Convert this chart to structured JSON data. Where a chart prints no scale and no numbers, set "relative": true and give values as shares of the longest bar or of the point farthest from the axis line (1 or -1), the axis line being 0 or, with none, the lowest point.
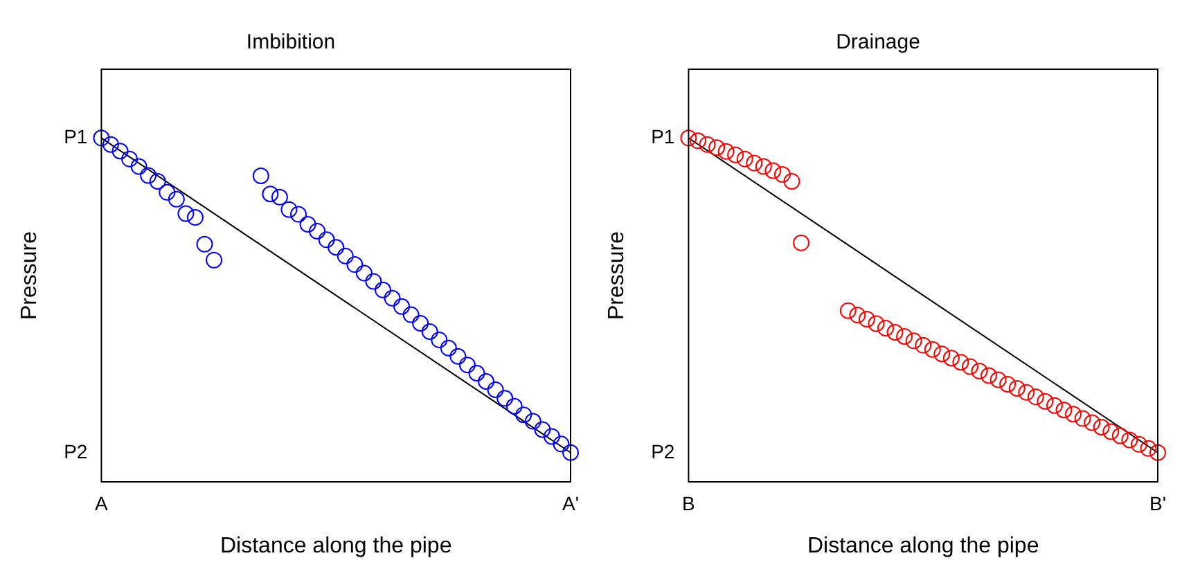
{
  "chart_data": [
    {
      "type": "scatter",
      "title": "Imbibition",
      "xlabel": "Distance along the pipe",
      "ylabel": "Pressure",
      "relative": true,
      "grid": false,
      "legend": false,
      "categories": [
        "A",
        null,
        null,
        null,
        null,
        null,
        null,
        null,
        null,
        null,
        null,
        null,
        null,
        null,
        null,
        null,
        null,
        null,
        null,
        null,
        null,
        null,
        null,
        null,
        null,
        null,
        null,
        null,
        null,
        null,
        null,
        null,
        null,
        null,
        null,
        null,
        null,
        null,
        null,
        null,
        null,
        null,
        null,
        null,
        null,
        null,
        null,
        null,
        null,
        null,
        "A'"
      ],
      "annotations": [
        "P1",
        "P2"
      ],
      "series": [
        {
          "type": "scatter",
          "marker": "circle",
          "color": "#0000ff",
          "values": [
            1,
            0.981,
            0.962,
            0.939,
            0.917,
            0.891,
            0.874,
            0.842,
            0.822,
            0.78,
            0.769,
            0.691,
            0.645,
            null,
            null,
            null,
            null,
            0.89,
            0.837,
            0.828,
            0.792,
            0.778,
            0.749,
            0.729,
            0.704,
            0.682,
            0.657,
            0.632,
            0.607,
            0.583,
            0.558,
            0.534,
            0.51,
            0.486,
            0.461,
            0.437,
            0.413,
            0.389,
            0.365,
            0.34,
            0.316,
            0.292,
            0.268,
            0.243,
            0.22,
            0.195,
            0.176,
            0.152,
            0.132,
            0.11,
            0.085
          ]
        },
        {
          "type": "line",
          "marker": "none",
          "line_style": "solid",
          "color": "#000000",
          "values": [
            1,
            null,
            null,
            null,
            null,
            null,
            null,
            null,
            null,
            null,
            null,
            null,
            null,
            null,
            null,
            null,
            null,
            null,
            null,
            null,
            null,
            null,
            null,
            null,
            null,
            null,
            null,
            null,
            null,
            null,
            null,
            null,
            null,
            null,
            null,
            null,
            null,
            null,
            null,
            null,
            null,
            null,
            null,
            null,
            null,
            null,
            null,
            null,
            null,
            null,
            0.085
          ]
        }
      ]
    },
    {
      "type": "scatter",
      "title": "Drainage",
      "xlabel": "Distance along the pipe",
      "ylabel": "Pressure",
      "relative": true,
      "grid": false,
      "legend": false,
      "categories": [
        "B",
        null,
        null,
        null,
        null,
        null,
        null,
        null,
        null,
        null,
        null,
        null,
        null,
        null,
        null,
        null,
        null,
        null,
        null,
        null,
        null,
        null,
        null,
        null,
        null,
        null,
        null,
        null,
        null,
        null,
        null,
        null,
        null,
        null,
        null,
        null,
        null,
        null,
        null,
        null,
        null,
        null,
        null,
        null,
        null,
        null,
        null,
        null,
        null,
        null,
        "B'"
      ],
      "annotations": [
        "P1",
        "P2"
      ],
      "series": [
        {
          "type": "scatter",
          "marker": "circle",
          "color": "#ff0000",
          "values": [
            1,
            0.992,
            0.981,
            0.972,
            0.961,
            0.951,
            0.939,
            0.927,
            0.917,
            0.905,
            0.894,
            0.874,
            0.695,
            null,
            null,
            null,
            null,
            0.498,
            0.485,
            0.473,
            0.46,
            0.447,
            0.435,
            0.423,
            0.41,
            0.397,
            0.385,
            0.372,
            0.36,
            0.348,
            0.335,
            0.322,
            0.309,
            0.297,
            0.284,
            0.272,
            0.26,
            0.247,
            0.234,
            0.222,
            0.209,
            0.197,
            0.184,
            0.172,
            0.159,
            0.146,
            0.134,
            0.122,
            0.109,
            0.097,
            0.085
          ]
        },
        {
          "type": "line",
          "marker": "none",
          "line_style": "solid",
          "color": "#000000",
          "values": [
            1,
            null,
            null,
            null,
            null,
            null,
            null,
            null,
            null,
            null,
            null,
            null,
            null,
            null,
            null,
            null,
            null,
            null,
            null,
            null,
            null,
            null,
            null,
            null,
            null,
            null,
            null,
            null,
            null,
            null,
            null,
            null,
            null,
            null,
            null,
            null,
            null,
            null,
            null,
            null,
            null,
            null,
            null,
            null,
            null,
            null,
            null,
            null,
            null,
            null,
            0.085
          ]
        }
      ]
    }
  ]
}
